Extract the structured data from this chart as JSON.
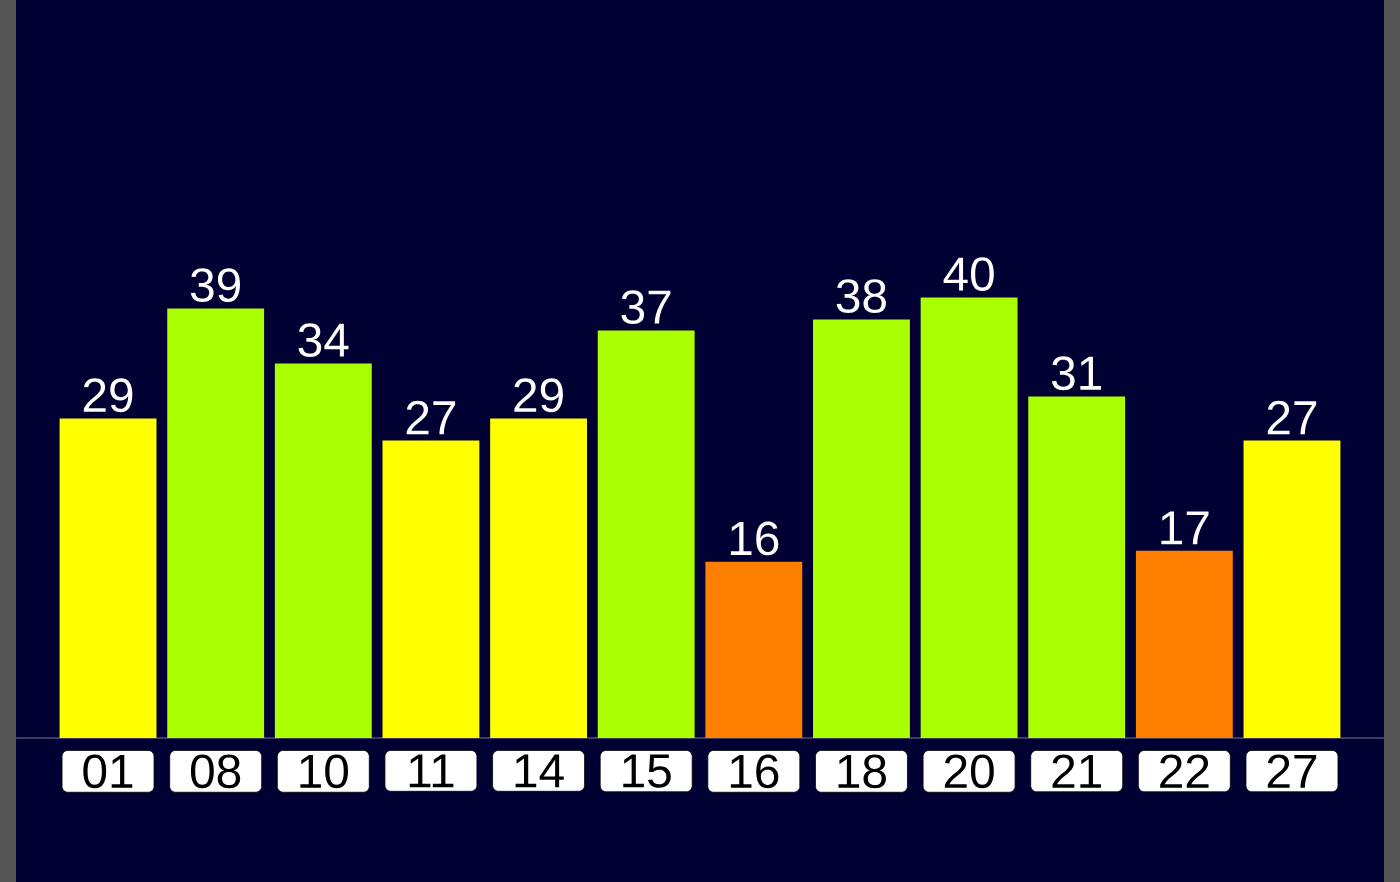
{
  "chart_data": {
    "type": "bar",
    "categories": [
      "01",
      "08",
      "10",
      "11",
      "14",
      "15",
      "16",
      "18",
      "20",
      "21",
      "22",
      "27"
    ],
    "values": [
      29,
      39,
      34,
      27,
      29,
      37,
      16,
      38,
      40,
      31,
      17,
      27
    ],
    "colors": [
      "#ffff00",
      "#aaff00",
      "#aaff00",
      "#ffff00",
      "#ffff00",
      "#aaff00",
      "#ff8000",
      "#aaff00",
      "#aaff00",
      "#aaff00",
      "#ff8000",
      "#ffff00"
    ],
    "data_labels": true,
    "ylim": [
      0,
      67
    ],
    "tick_labels": "x"
  }
}
